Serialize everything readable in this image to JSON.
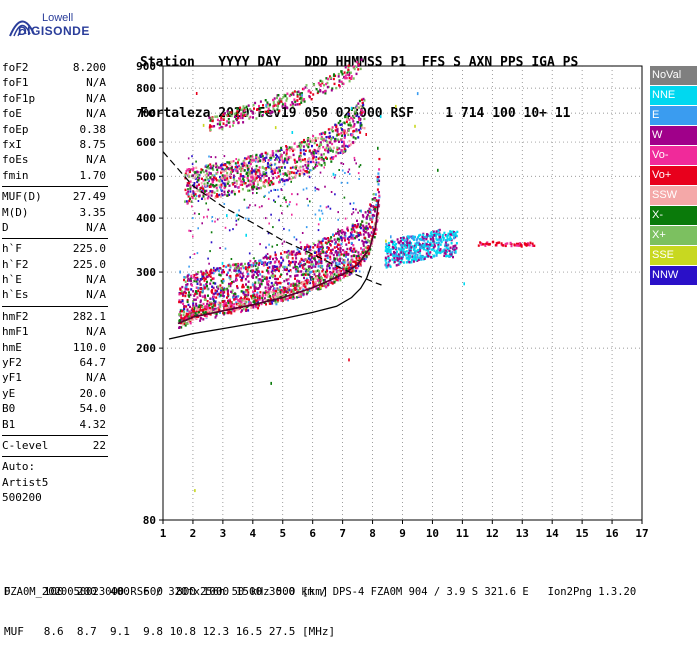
{
  "logo": {
    "line1": "Lowell",
    "line2": "DIGISONDE"
  },
  "header": {
    "line1": "Station   YYYY DAY   DDD HHMMSS P1  FFS S AXN PPS IGA PS",
    "line2": "Fortaleza 2020 Fev19 050 023000 RSF    1 714 100 10+ 11"
  },
  "params": [
    {
      "group": [
        {
          "name": "foF2",
          "value": "8.200"
        },
        {
          "name": "foF1",
          "value": "N/A"
        },
        {
          "name": "foF1p",
          "value": "N/A"
        },
        {
          "name": "foE",
          "value": "N/A"
        },
        {
          "name": "foEp",
          "value": "0.38"
        },
        {
          "name": "fxI",
          "value": "8.75"
        },
        {
          "name": "foEs",
          "value": "N/A"
        },
        {
          "name": "fmin",
          "value": "1.70"
        }
      ]
    },
    {
      "group": [
        {
          "name": "MUF(D)",
          "value": "27.49"
        },
        {
          "name": "M(D)",
          "value": "3.35"
        },
        {
          "name": "D",
          "value": "N/A"
        }
      ]
    },
    {
      "group": [
        {
          "name": "h`F",
          "value": "225.0"
        },
        {
          "name": "h`F2",
          "value": "225.0"
        },
        {
          "name": "h`E",
          "value": "N/A"
        },
        {
          "name": "h`Es",
          "value": "N/A"
        }
      ]
    },
    {
      "group": [
        {
          "name": "hmF2",
          "value": "282.1"
        },
        {
          "name": "hmF1",
          "value": "N/A"
        },
        {
          "name": "hmE",
          "value": "110.0"
        },
        {
          "name": "yF2",
          "value": "64.7"
        },
        {
          "name": "yF1",
          "value": "N/A"
        },
        {
          "name": "yE",
          "value": "20.0"
        },
        {
          "name": "B0",
          "value": "54.0"
        },
        {
          "name": "B1",
          "value": "4.32"
        }
      ]
    },
    {
      "group": [
        {
          "name": "C-level",
          "value": "22"
        }
      ]
    }
  ],
  "auto": {
    "line1": "Auto:",
    "line2": "Artist5",
    "line3": "500200"
  },
  "legend": [
    {
      "label": "NoVal",
      "color": "#7f7f7f"
    },
    {
      "label": "NNE",
      "color": "#00d8f0"
    },
    {
      "label": "E",
      "color": "#3a9cf0"
    },
    {
      "label": "W",
      "color": "#a0008a"
    },
    {
      "label": "Vo-",
      "color": "#f02a9a"
    },
    {
      "label": "Vo+",
      "color": "#e8001c"
    },
    {
      "label": "SSW",
      "color": "#f4a8a8"
    },
    {
      "label": "X-",
      "color": "#0a7a0a"
    },
    {
      "label": "X+",
      "color": "#7cc060"
    },
    {
      "label": "SSE",
      "color": "#c8d820"
    },
    {
      "label": "NNW",
      "color": "#2a10c8"
    }
  ],
  "bottom": {
    "line1": "D     100  200  400  600  800 1000 1500 3000 [km]",
    "line2": "MUF   8.6  8.7  9.1  9.8 10.8 12.3 16.5 27.5 [MHz]"
  },
  "footer": "FZA0M_2020050023000.RSF / 320fx256h 50 kHz 5.0 km / DPS-4 FZA0M 904 / 3.9 S 321.6 E   Ion2Png 1.3.20",
  "chart_data": {
    "type": "scatter",
    "title": "",
    "xlabel": "",
    "ylabel": "",
    "xlim": [
      1,
      17
    ],
    "ylim": [
      80,
      900
    ],
    "y_scale": "log",
    "x_ticks": [
      "1",
      "2",
      "3",
      "4",
      "5",
      "6",
      "7",
      "8",
      "9",
      "10",
      "11",
      "12",
      "13",
      "14",
      "15",
      "16",
      "17"
    ],
    "y_ticks": [
      "80",
      "200",
      "300",
      "400",
      "500",
      "600",
      "700",
      "800",
      "900"
    ],
    "traces": [
      {
        "name": "O-trace F2",
        "points": [
          [
            1.5,
            228
          ],
          [
            2,
            236
          ],
          [
            3,
            244
          ],
          [
            4,
            252
          ],
          [
            5,
            262
          ],
          [
            6,
            276
          ],
          [
            7,
            296
          ],
          [
            7.5,
            312
          ],
          [
            7.9,
            340
          ],
          [
            8.1,
            380
          ],
          [
            8.2,
            440
          ]
        ]
      },
      {
        "name": "1st multihop",
        "points": [
          [
            1.7,
            442
          ],
          [
            2.5,
            454
          ],
          [
            3.5,
            468
          ],
          [
            4.5,
            486
          ],
          [
            5.5,
            512
          ],
          [
            6.5,
            548
          ],
          [
            7,
            580
          ],
          [
            7.4,
            620
          ],
          [
            7.7,
            660
          ]
        ]
      },
      {
        "name": "2nd multihop",
        "points": [
          [
            2.5,
            650
          ],
          [
            3.5,
            685
          ],
          [
            4.5,
            720
          ],
          [
            5.5,
            760
          ],
          [
            6.5,
            808
          ],
          [
            7.2,
            860
          ],
          [
            7.6,
            895
          ]
        ]
      },
      {
        "name": "X extension",
        "points": [
          [
            8.4,
            330
          ],
          [
            9,
            340
          ],
          [
            9.6,
            345
          ],
          [
            10.2,
            355
          ],
          [
            10.8,
            350
          ]
        ]
      },
      {
        "name": "Vo+ tail",
        "points": [
          [
            11.5,
            350
          ],
          [
            12,
            352
          ],
          [
            12.6,
            350
          ],
          [
            13,
            349
          ],
          [
            13.4,
            350
          ]
        ]
      }
    ],
    "profile_curve": [
      [
        1.2,
        210
      ],
      [
        2,
        216
      ],
      [
        3,
        222
      ],
      [
        4,
        228
      ],
      [
        5,
        234
      ],
      [
        6,
        242
      ],
      [
        6.8,
        250
      ],
      [
        7.3,
        262
      ],
      [
        7.6,
        275
      ],
      [
        7.8,
        290
      ],
      [
        7.95,
        310
      ]
    ],
    "dashed_curve": [
      [
        1,
        570
      ],
      [
        1.5,
        520
      ],
      [
        2,
        475
      ],
      [
        3,
        425
      ],
      [
        4,
        390
      ],
      [
        5,
        355
      ],
      [
        6,
        330
      ],
      [
        7,
        305
      ],
      [
        8,
        285
      ],
      [
        8.3,
        280
      ]
    ]
  }
}
